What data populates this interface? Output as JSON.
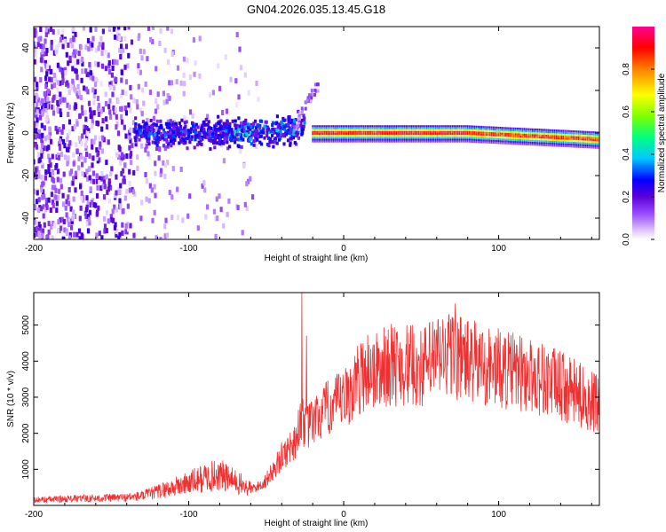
{
  "chart_data": [
    {
      "type": "heatmap",
      "title": "GN04.2026.035.13.45.G18",
      "xlabel": "Height of straight line (km)",
      "ylabel": "Frequency (Hz)",
      "xlim": [
        -200,
        165
      ],
      "ylim": [
        -50,
        50
      ],
      "xticks": [
        -200,
        -100,
        0,
        100
      ],
      "xtick_labels": [
        "-200",
        "-100",
        "0",
        "100"
      ],
      "yticks": [
        -40,
        -20,
        0,
        20,
        40
      ],
      "ytick_labels": [
        "-40",
        "-20",
        "0",
        "20",
        "40"
      ],
      "colorbar": {
        "label": "Normalized spectral amplitude",
        "range": [
          0,
          1
        ],
        "ticks": [
          0.0,
          0.2,
          0.4,
          0.6,
          0.8
        ],
        "tick_labels": [
          "0.0",
          "0.2",
          "0.4",
          "0.6",
          "0.8"
        ],
        "colors": [
          "#ffffff",
          "#e0c8ff",
          "#9a4dff",
          "#5a00d8",
          "#0000ff",
          "#00c8ff",
          "#00ff80",
          "#80ff00",
          "#ffff00",
          "#ff8000",
          "#ff0000",
          "#ff0090"
        ]
      },
      "regions": [
        {
          "name": "scattered noise",
          "x_range": [
            -200,
            -55
          ],
          "frequency_range": [
            -50,
            50
          ],
          "amplitude": "0.0-0.2"
        },
        {
          "name": "onset band",
          "x_range": [
            -135,
            -25
          ],
          "frequency_center": 0,
          "frequency_halfwidth": 6,
          "amplitude": "0.2-0.5"
        },
        {
          "name": "rising tail",
          "x_range": [
            -30,
            -15
          ],
          "frequency_range": [
            0,
            25
          ],
          "amplitude": "0.1-0.3"
        },
        {
          "name": "signal line",
          "x_range": [
            -20,
            165
          ],
          "frequency_center_start": 0,
          "frequency_center_end": -3,
          "amplitude": "0.8-1.0"
        }
      ]
    },
    {
      "type": "line",
      "xlabel": "Height of straight line (km)",
      "ylabel": "SNR (10 * v/v)",
      "xlim": [
        -200,
        165
      ],
      "ylim": [
        0,
        5900
      ],
      "xticks": [
        -200,
        -100,
        0,
        100
      ],
      "xtick_labels": [
        "-200",
        "-100",
        "0",
        "100"
      ],
      "yticks": [
        1000,
        2000,
        3000,
        4000,
        5000
      ],
      "ytick_labels": [
        "1000",
        "2000",
        "3000",
        "4000",
        "5000"
      ],
      "series": [
        {
          "name": "SNR",
          "color": "#f03030",
          "x": [
            -200,
            -180,
            -160,
            -140,
            -130,
            -120,
            -110,
            -100,
            -90,
            -80,
            -70,
            -60,
            -55,
            -50,
            -45,
            -40,
            -35,
            -30,
            -27,
            -25,
            -20,
            -15,
            -10,
            -5,
            0,
            5,
            10,
            15,
            20,
            30,
            40,
            50,
            60,
            70,
            80,
            90,
            100,
            110,
            120,
            130,
            140,
            150,
            160,
            165
          ],
          "values": [
            150,
            180,
            200,
            220,
            260,
            380,
            500,
            620,
            760,
            850,
            650,
            450,
            520,
            700,
            1000,
            1350,
            1600,
            1900,
            2600,
            2100,
            2300,
            2500,
            2700,
            2800,
            2900,
            3200,
            3500,
            3800,
            3700,
            3900,
            3900,
            3800,
            4100,
            4200,
            4000,
            3900,
            3800,
            3700,
            3600,
            3500,
            3300,
            3100,
            2900,
            2750
          ],
          "spikes": [
            {
              "x": -27,
              "value": 5900
            },
            {
              "x": -24,
              "value": 4700
            },
            {
              "x": 68,
              "value": 5300
            },
            {
              "x": 72,
              "value": 5600
            }
          ]
        }
      ]
    }
  ]
}
